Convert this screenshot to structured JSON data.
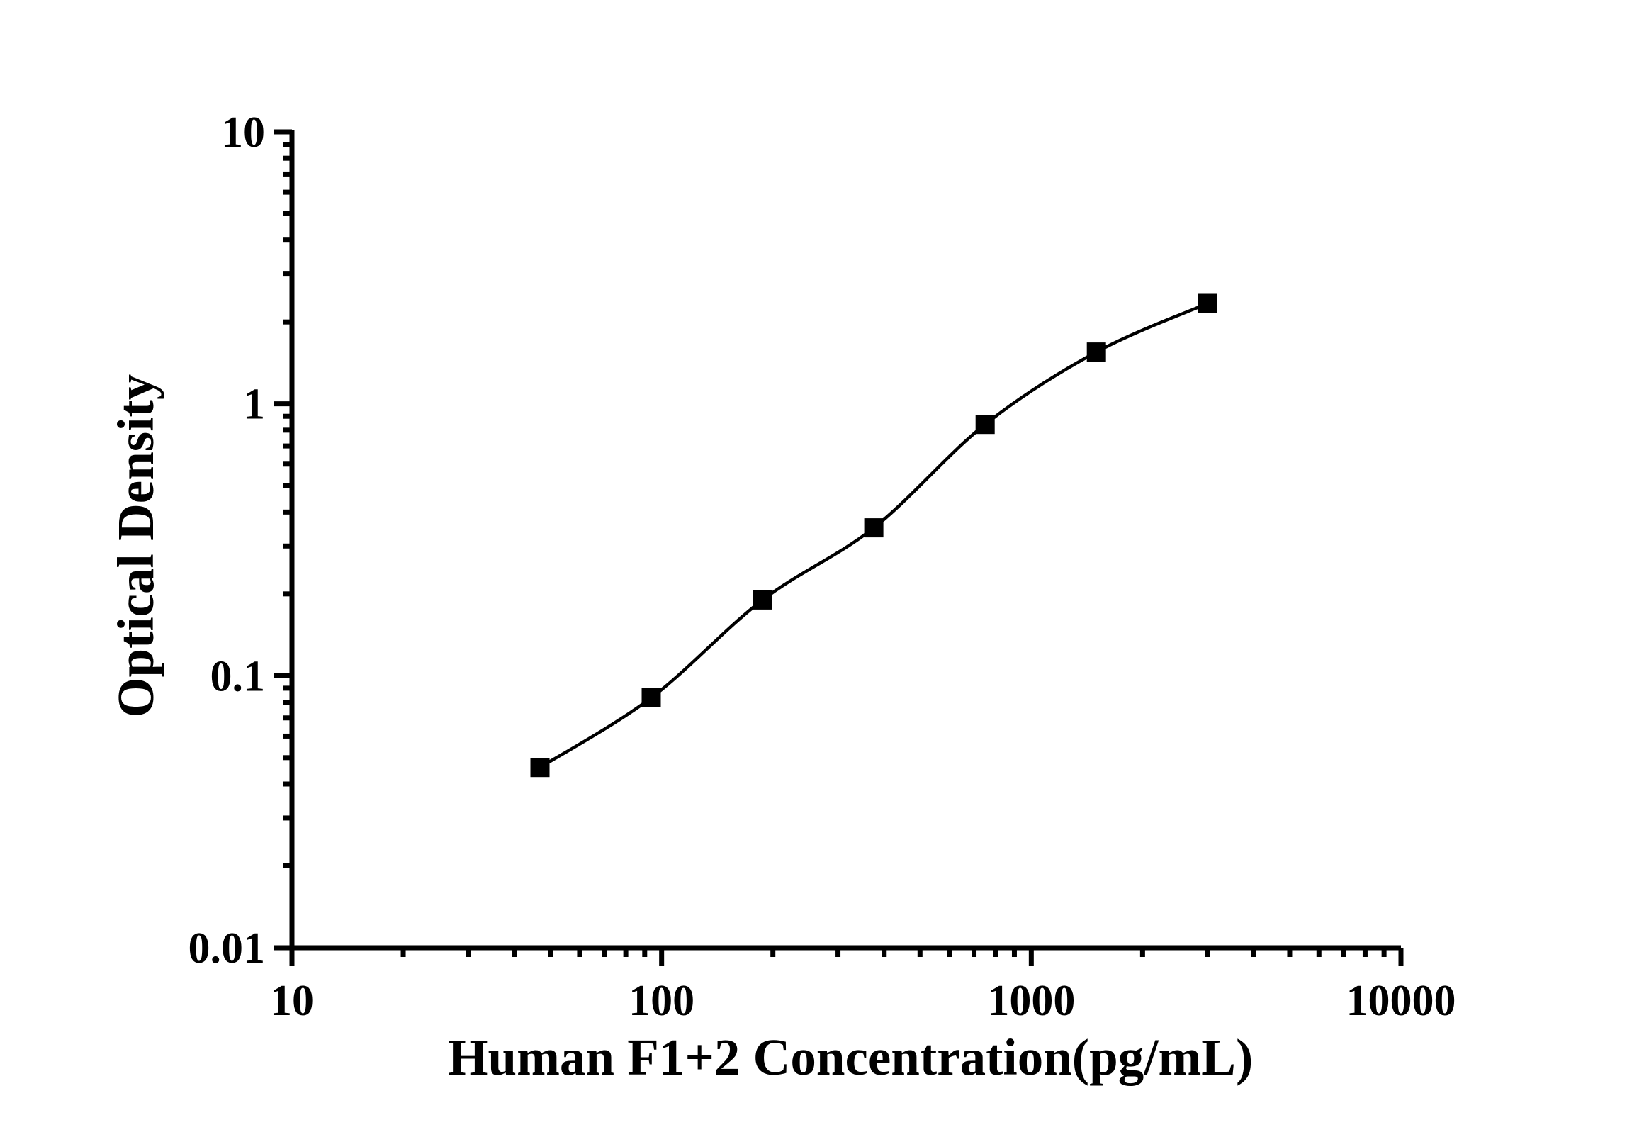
{
  "chart_data": {
    "type": "scatter",
    "title": "",
    "xlabel": "Human F1+2 Concentration(pg/mL)",
    "ylabel": "Optical Density",
    "x_scale": "log",
    "y_scale": "log",
    "xlim": [
      10,
      10000
    ],
    "ylim": [
      0.01,
      10
    ],
    "x_tick_labels": [
      "10",
      "100",
      "1000",
      "10000"
    ],
    "y_tick_labels": [
      "0.01",
      "0.1",
      "1",
      "10"
    ],
    "x": [
      46.88,
      93.75,
      187.5,
      375,
      750,
      1500,
      3000
    ],
    "y": [
      0.046,
      0.083,
      0.19,
      0.35,
      0.84,
      1.55,
      2.34
    ],
    "marker": "filled-square",
    "line": "smooth-fit",
    "grid": false,
    "legend": "none",
    "colors": {
      "foreground": "#000000",
      "background": "#ffffff"
    }
  }
}
